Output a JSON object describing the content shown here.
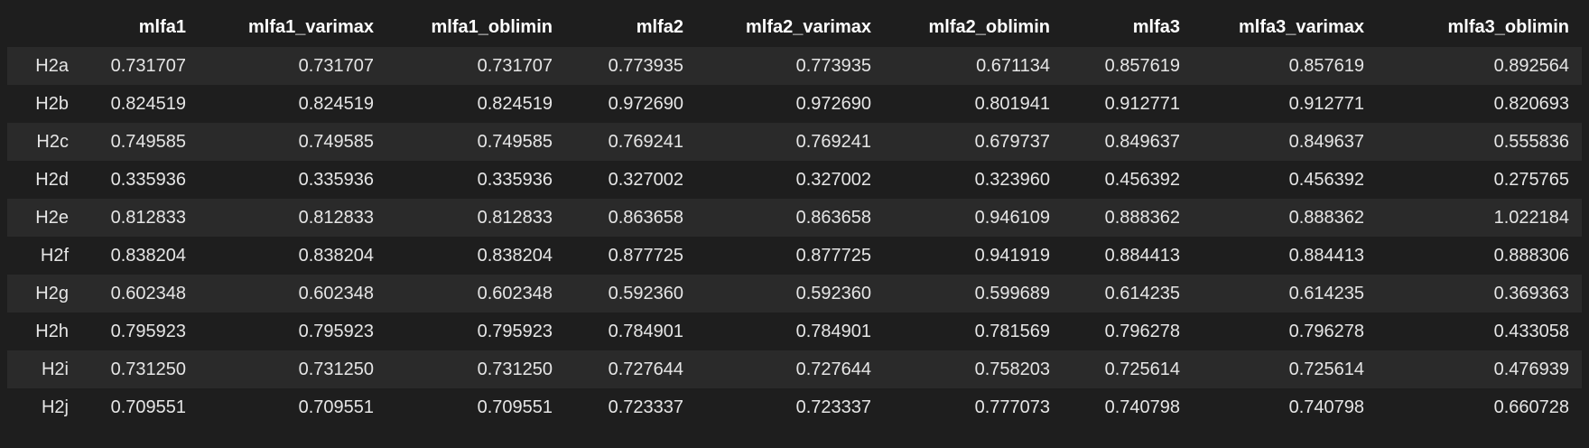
{
  "table": {
    "index_header": "",
    "columns": [
      "mlfa1",
      "mlfa1_varimax",
      "mlfa1_oblimin",
      "mlfa2",
      "mlfa2_varimax",
      "mlfa2_oblimin",
      "mlfa3",
      "mlfa3_varimax",
      "mlfa3_oblimin"
    ],
    "rows": [
      {
        "index": "H2a",
        "values": [
          "0.731707",
          "0.731707",
          "0.731707",
          "0.773935",
          "0.773935",
          "0.671134",
          "0.857619",
          "0.857619",
          "0.892564"
        ]
      },
      {
        "index": "H2b",
        "values": [
          "0.824519",
          "0.824519",
          "0.824519",
          "0.972690",
          "0.972690",
          "0.801941",
          "0.912771",
          "0.912771",
          "0.820693"
        ]
      },
      {
        "index": "H2c",
        "values": [
          "0.749585",
          "0.749585",
          "0.749585",
          "0.769241",
          "0.769241",
          "0.679737",
          "0.849637",
          "0.849637",
          "0.555836"
        ]
      },
      {
        "index": "H2d",
        "values": [
          "0.335936",
          "0.335936",
          "0.335936",
          "0.327002",
          "0.327002",
          "0.323960",
          "0.456392",
          "0.456392",
          "0.275765"
        ]
      },
      {
        "index": "H2e",
        "values": [
          "0.812833",
          "0.812833",
          "0.812833",
          "0.863658",
          "0.863658",
          "0.946109",
          "0.888362",
          "0.888362",
          "1.022184"
        ]
      },
      {
        "index": "H2f",
        "values": [
          "0.838204",
          "0.838204",
          "0.838204",
          "0.877725",
          "0.877725",
          "0.941919",
          "0.884413",
          "0.884413",
          "0.888306"
        ]
      },
      {
        "index": "H2g",
        "values": [
          "0.602348",
          "0.602348",
          "0.602348",
          "0.592360",
          "0.592360",
          "0.599689",
          "0.614235",
          "0.614235",
          "0.369363"
        ]
      },
      {
        "index": "H2h",
        "values": [
          "0.795923",
          "0.795923",
          "0.795923",
          "0.784901",
          "0.784901",
          "0.781569",
          "0.796278",
          "0.796278",
          "0.433058"
        ]
      },
      {
        "index": "H2i",
        "values": [
          "0.731250",
          "0.731250",
          "0.731250",
          "0.727644",
          "0.727644",
          "0.758203",
          "0.725614",
          "0.725614",
          "0.476939"
        ]
      },
      {
        "index": "H2j",
        "values": [
          "0.709551",
          "0.709551",
          "0.709551",
          "0.723337",
          "0.723337",
          "0.777073",
          "0.740798",
          "0.740798",
          "0.660728"
        ]
      }
    ]
  },
  "colors": {
    "background": "#1e1e1e",
    "row_stripe": "#2a2a2a",
    "header_text": "#ffffff",
    "cell_text": "#e6e6e6"
  }
}
